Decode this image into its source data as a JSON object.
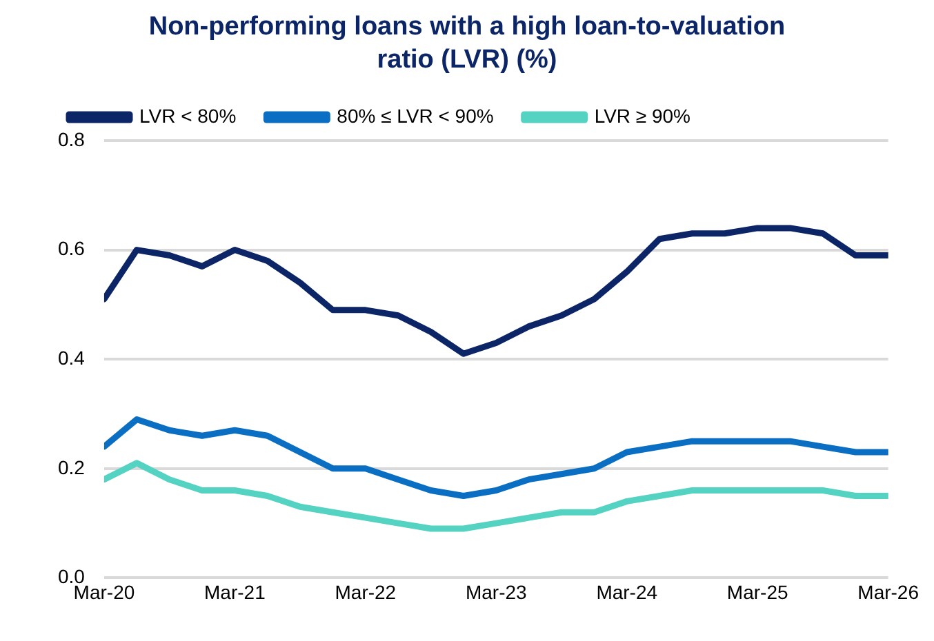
{
  "chart_data": {
    "type": "line",
    "title": "Non-performing loans with a high loan-to-valuation ratio (LVR) (%)",
    "x": [
      "2020-03",
      "2020-06",
      "2020-09",
      "2020-12",
      "2021-03",
      "2021-06",
      "2021-09",
      "2021-12",
      "2022-03",
      "2022-06",
      "2022-09",
      "2022-12",
      "2023-03",
      "2023-06",
      "2023-09",
      "2023-12",
      "2024-03",
      "2024-06",
      "2024-09",
      "2024-12",
      "2025-03",
      "2025-06",
      "2025-09",
      "2025-12",
      "2026-03"
    ],
    "series": [
      {
        "name": "LVR < 80%",
        "color": "#0b2566",
        "values": [
          0.51,
          0.6,
          0.59,
          0.57,
          0.6,
          0.58,
          0.54,
          0.49,
          0.49,
          0.48,
          0.45,
          0.41,
          0.43,
          0.46,
          0.48,
          0.51,
          0.56,
          0.62,
          0.63,
          0.63,
          0.64,
          0.64,
          0.63,
          0.59,
          0.59
        ]
      },
      {
        "name": "80% ≤ LVR < 90%",
        "color": "#0a6fc2",
        "values": [
          0.24,
          0.29,
          0.27,
          0.26,
          0.27,
          0.26,
          0.23,
          0.2,
          0.2,
          0.18,
          0.16,
          0.15,
          0.16,
          0.18,
          0.19,
          0.2,
          0.23,
          0.24,
          0.25,
          0.25,
          0.25,
          0.25,
          0.24,
          0.23,
          0.23
        ]
      },
      {
        "name": "LVR ≥ 90%",
        "color": "#54d2c2",
        "values": [
          0.18,
          0.21,
          0.18,
          0.16,
          0.16,
          0.15,
          0.13,
          0.12,
          0.11,
          0.1,
          0.09,
          0.09,
          0.1,
          0.11,
          0.12,
          0.12,
          0.14,
          0.15,
          0.16,
          0.16,
          0.16,
          0.16,
          0.16,
          0.15,
          0.15
        ]
      }
    ],
    "xlim": [
      "2020-03",
      "2026-03"
    ],
    "xticks": [
      {
        "value": "2020-03",
        "label": "Mar-20"
      },
      {
        "value": "2021-03",
        "label": "Mar-21"
      },
      {
        "value": "2022-03",
        "label": "Mar-22"
      },
      {
        "value": "2023-03",
        "label": "Mar-23"
      },
      {
        "value": "2024-03",
        "label": "Mar-24"
      },
      {
        "value": "2025-03",
        "label": "Mar-25"
      },
      {
        "value": "2026-03",
        "label": "Mar-26"
      }
    ],
    "ylim": [
      0,
      0.8
    ],
    "yticks": [
      {
        "value": 0,
        "label": "0.0"
      },
      {
        "value": 0.2,
        "label": "0.2"
      },
      {
        "value": 0.4,
        "label": "0.4"
      },
      {
        "value": 0.6,
        "label": "0.6"
      },
      {
        "value": 0.8,
        "label": "0.8"
      }
    ],
    "grid": "y",
    "legend": "top",
    "marker": "none",
    "line_style": "solid"
  }
}
